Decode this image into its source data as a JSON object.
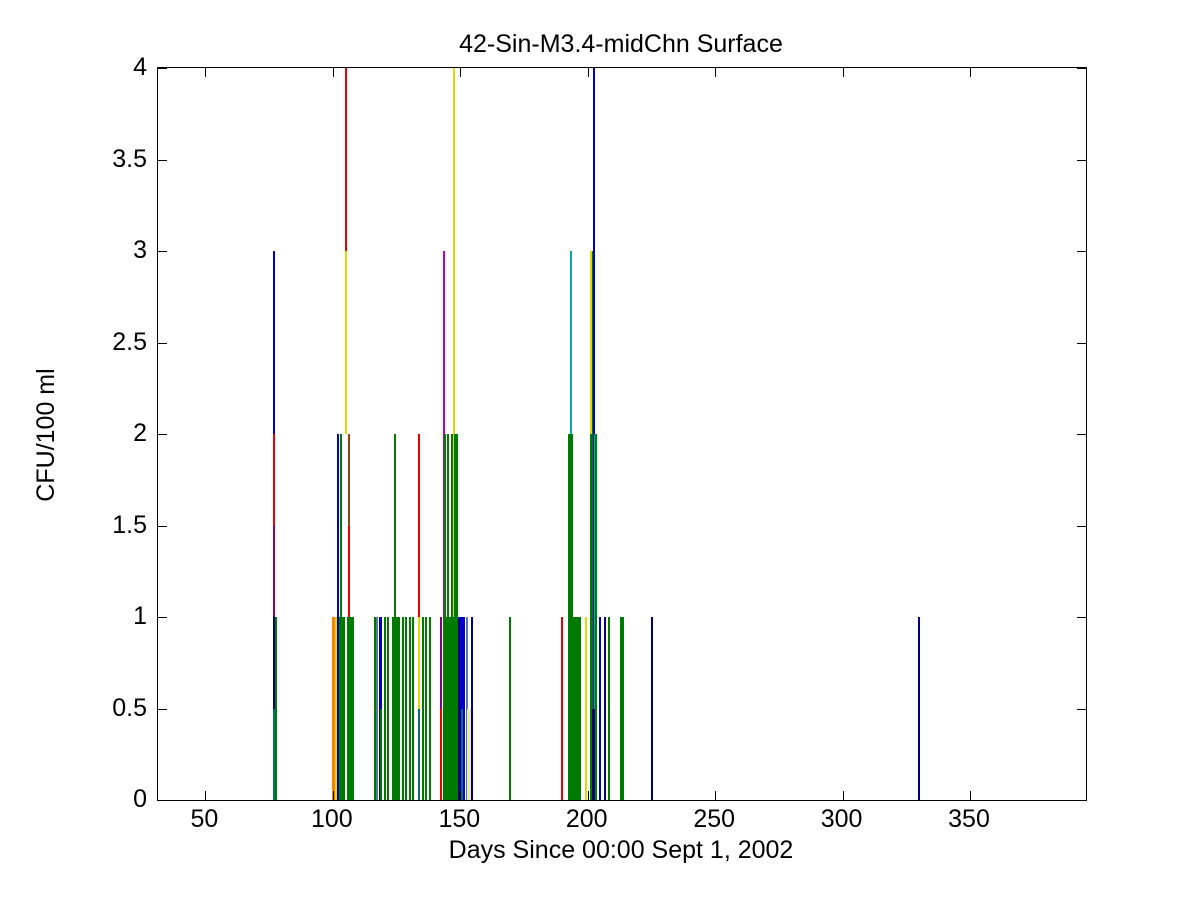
{
  "title": "42-Sin-M3.4-midChn Surface",
  "axes": {
    "xlabel": "Days Since 00:00 Sept 1, 2002",
    "ylabel": "CFU/100 ml"
  },
  "chart_data": {
    "type": "stem",
    "title": "42-Sin-M3.4-midChn Surface",
    "xlabel": "Days Since 00:00 Sept 1, 2002",
    "ylabel": "CFU/100 ml",
    "xlim": [
      31.4,
      395.5
    ],
    "ylim": [
      0,
      4
    ],
    "xticks": [
      50,
      100,
      150,
      200,
      250,
      300,
      350
    ],
    "yticks": [
      0,
      0.5,
      1,
      1.5,
      2,
      2.5,
      3,
      3.5,
      4
    ],
    "grid": false,
    "legend": null,
    "palette": {
      "blue": "#0000cc",
      "navy": "#000080",
      "green": "#007a00",
      "red": "#ee0000",
      "brown": "#8b4513",
      "cyan": "#00aaaa",
      "magenta": "#bb00bb",
      "purple": "#800080",
      "yellow": "#dcdc00",
      "paleyellow": "#e9e9b0",
      "orange": "#ff8000",
      "slate": "#5577aa",
      "teal": "#007070"
    },
    "spikes": [
      {
        "d": 76.9,
        "h": 3,
        "c": "blue"
      },
      {
        "d": 76.9,
        "h": 2,
        "c": "red"
      },
      {
        "d": 76.9,
        "h": 1.5,
        "c": "purple"
      },
      {
        "d": 76.9,
        "h": 1,
        "c": "navy"
      },
      {
        "d": 77.5,
        "h": 1,
        "c": "green"
      },
      {
        "d": 76.9,
        "h": 0.5,
        "c": "teal"
      },
      {
        "d": 100.2,
        "h": 1,
        "c": "orange"
      },
      {
        "d": 100.8,
        "h": 1,
        "c": "orange"
      },
      {
        "d": 101.4,
        "h": 1,
        "c": "yellow"
      },
      {
        "d": 101.9,
        "h": 2,
        "c": "blue"
      },
      {
        "d": 102.6,
        "h": 1,
        "c": "green"
      },
      {
        "d": 103.2,
        "h": 2,
        "c": "green"
      },
      {
        "d": 103.8,
        "h": 1,
        "c": "green"
      },
      {
        "d": 104.4,
        "h": 1,
        "c": "green"
      },
      {
        "d": 105.0,
        "h": 3,
        "f": 2,
        "c": "yellow"
      },
      {
        "d": 105.3,
        "h": 4,
        "f": 3,
        "c": "red"
      },
      {
        "d": 105.9,
        "h": 1,
        "c": "green"
      },
      {
        "d": 106.5,
        "h": 2,
        "f": 1.5,
        "c": "brown"
      },
      {
        "d": 106.5,
        "h": 1.5,
        "f": 1,
        "c": "red"
      },
      {
        "d": 106.5,
        "h": 1,
        "c": "green"
      },
      {
        "d": 107.1,
        "h": 1,
        "c": "green"
      },
      {
        "d": 107.7,
        "h": 1,
        "c": "green"
      },
      {
        "d": 116.4,
        "h": 1,
        "c": "green"
      },
      {
        "d": 117.2,
        "h": 1,
        "c": "slate"
      },
      {
        "d": 118.4,
        "h": 1,
        "c": "navy"
      },
      {
        "d": 119.0,
        "h": 1,
        "c": "blue"
      },
      {
        "d": 119.0,
        "h": 0.5,
        "c": "green"
      },
      {
        "d": 120.6,
        "h": 1,
        "c": "green"
      },
      {
        "d": 121.8,
        "h": 1,
        "c": "green"
      },
      {
        "d": 123.7,
        "h": 1,
        "c": "green"
      },
      {
        "d": 124.3,
        "h": 2,
        "c": "green"
      },
      {
        "d": 124.9,
        "h": 1,
        "c": "green"
      },
      {
        "d": 125.5,
        "h": 1,
        "c": "green"
      },
      {
        "d": 126.1,
        "h": 1,
        "c": "green"
      },
      {
        "d": 127.6,
        "h": 1,
        "c": "green"
      },
      {
        "d": 128.8,
        "h": 1,
        "c": "green"
      },
      {
        "d": 130.4,
        "h": 1,
        "c": "green"
      },
      {
        "d": 131.6,
        "h": 1,
        "c": "green"
      },
      {
        "d": 133.9,
        "h": 2,
        "c": "red"
      },
      {
        "d": 133.9,
        "h": 1,
        "c": "yellow"
      },
      {
        "d": 133.9,
        "h": 0.5,
        "c": "teal"
      },
      {
        "d": 135.5,
        "h": 1,
        "c": "green"
      },
      {
        "d": 136.7,
        "h": 1,
        "c": "green"
      },
      {
        "d": 138.2,
        "h": 1,
        "c": "green"
      },
      {
        "d": 142.5,
        "h": 1,
        "c": "purple"
      },
      {
        "d": 142.5,
        "h": 0.5,
        "c": "red"
      },
      {
        "d": 143.7,
        "h": 3,
        "c": "magenta"
      },
      {
        "d": 144.1,
        "h": 2,
        "c": "green"
      },
      {
        "d": 145.3,
        "h": 2,
        "c": "green"
      },
      {
        "d": 146.8,
        "h": 2,
        "c": "green"
      },
      {
        "d": 147.6,
        "h": 4,
        "c": "yellow"
      },
      {
        "d": 147.9,
        "h": 2,
        "c": "green"
      },
      {
        "d": 148.5,
        "h": 2,
        "c": "green"
      },
      {
        "d": 143.5,
        "h": 1,
        "c": "green"
      },
      {
        "d": 144.3,
        "h": 1,
        "c": "green"
      },
      {
        "d": 145.1,
        "h": 1,
        "c": "green"
      },
      {
        "d": 145.9,
        "h": 1,
        "c": "green"
      },
      {
        "d": 146.6,
        "h": 1,
        "c": "green"
      },
      {
        "d": 147.2,
        "h": 1,
        "c": "green"
      },
      {
        "d": 148.0,
        "h": 1,
        "c": "green"
      },
      {
        "d": 148.6,
        "h": 1,
        "c": "green"
      },
      {
        "d": 149.3,
        "h": 1,
        "c": "navy"
      },
      {
        "d": 150.2,
        "h": 1,
        "c": "blue"
      },
      {
        "d": 150.8,
        "h": 1,
        "c": "blue"
      },
      {
        "d": 150.8,
        "h": 0.5,
        "c": "teal"
      },
      {
        "d": 151.6,
        "h": 1,
        "c": "blue"
      },
      {
        "d": 152.8,
        "h": 1,
        "c": "slate"
      },
      {
        "d": 153.2,
        "h": 0.5,
        "c": "paleyellow"
      },
      {
        "d": 153.7,
        "h": 0.5,
        "c": "paleyellow"
      },
      {
        "d": 154.5,
        "h": 1,
        "c": "navy"
      },
      {
        "d": 169.6,
        "h": 1,
        "c": "green"
      },
      {
        "d": 189.8,
        "h": 1,
        "c": "red"
      },
      {
        "d": 192.5,
        "h": 2,
        "c": "green"
      },
      {
        "d": 193.3,
        "h": 3,
        "c": "cyan"
      },
      {
        "d": 193.3,
        "h": 2,
        "c": "green"
      },
      {
        "d": 193.9,
        "h": 2,
        "c": "green"
      },
      {
        "d": 194.7,
        "h": 1,
        "c": "green"
      },
      {
        "d": 195.5,
        "h": 1,
        "c": "green"
      },
      {
        "d": 196.3,
        "h": 1,
        "c": "green"
      },
      {
        "d": 197.1,
        "h": 1,
        "c": "green"
      },
      {
        "d": 199.3,
        "h": 1,
        "c": "yellow"
      },
      {
        "d": 201.3,
        "h": 3,
        "c": "yellow"
      },
      {
        "d": 201.3,
        "h": 2,
        "c": "green"
      },
      {
        "d": 201.9,
        "h": 3,
        "c": "green"
      },
      {
        "d": 202.5,
        "h": 4,
        "c": "blue"
      },
      {
        "d": 202.9,
        "h": 2,
        "c": "cyan"
      },
      {
        "d": 203.3,
        "h": 2,
        "c": "green"
      },
      {
        "d": 202.1,
        "h": 0.5,
        "c": "navy"
      },
      {
        "d": 202.6,
        "h": 0.5,
        "c": "navy"
      },
      {
        "d": 204.9,
        "h": 1,
        "c": "blue"
      },
      {
        "d": 206.8,
        "h": 1,
        "c": "navy"
      },
      {
        "d": 208.4,
        "h": 1,
        "c": "green"
      },
      {
        "d": 213.2,
        "h": 1,
        "c": "green"
      },
      {
        "d": 213.7,
        "h": 1,
        "c": "green"
      },
      {
        "d": 225.3,
        "h": 1,
        "c": "navy"
      },
      {
        "d": 330.0,
        "h": 1,
        "c": "navy"
      }
    ]
  }
}
